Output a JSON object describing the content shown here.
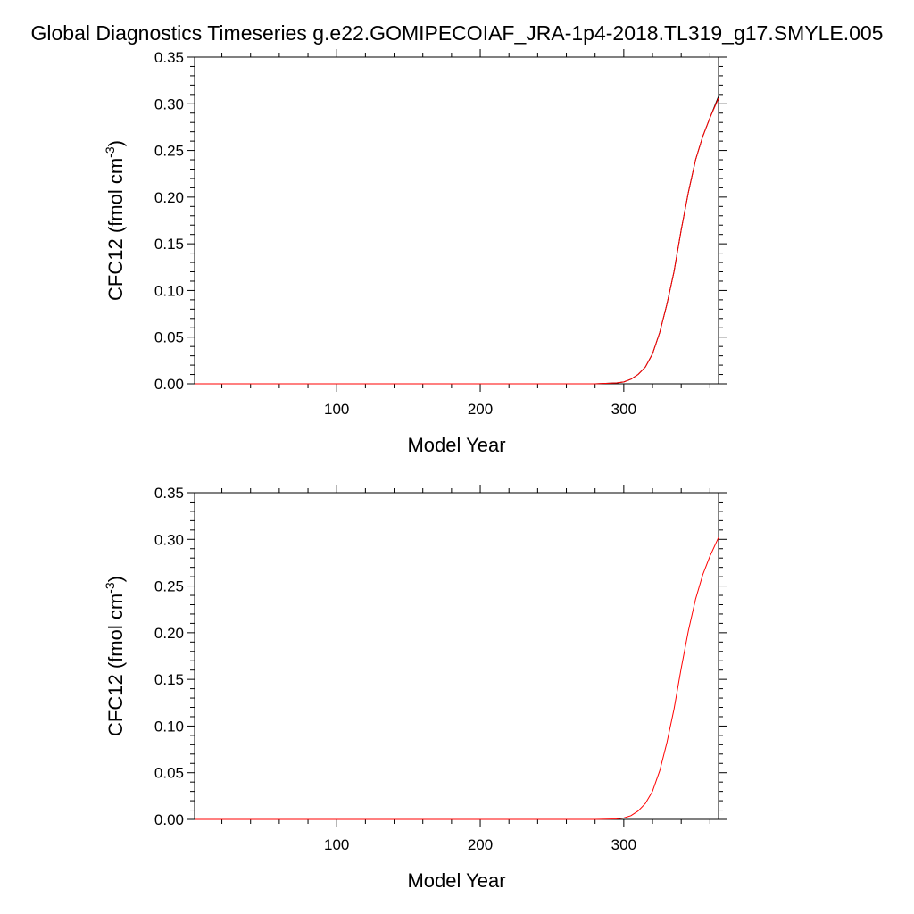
{
  "title": "Global Diagnostics Timeseries g.e22.GOMIPECOIAF_JRA-1p4-2018.TL319_g17.SMYLE.005",
  "chart_data": [
    {
      "type": "line",
      "xlabel": "Model Year",
      "ylabel": "CFC12 (fmol cm",
      "ylabel_superscript": "-3",
      "ylabel_close": ")",
      "xlim": [
        1,
        366
      ],
      "ylim": [
        0,
        0.35
      ],
      "x_ticks": [
        100,
        200,
        300
      ],
      "y_ticks": [
        "0.00",
        "0.05",
        "0.10",
        "0.15",
        "0.20",
        "0.25",
        "0.30",
        "0.35"
      ],
      "grid": false,
      "series": [
        {
          "color": "#000000",
          "x": [
            1,
            280,
            295,
            300,
            305,
            310,
            315,
            320,
            325,
            330,
            335,
            340,
            345,
            350,
            355,
            360,
            366
          ],
          "y": [
            0.0,
            0.0,
            0.001,
            0.002,
            0.005,
            0.01,
            0.018,
            0.032,
            0.055,
            0.085,
            0.12,
            0.165,
            0.205,
            0.24,
            0.265,
            0.285,
            0.308
          ]
        },
        {
          "color": "#ff0000",
          "x": [
            1,
            280,
            295,
            300,
            305,
            310,
            315,
            320,
            325,
            330,
            335,
            340,
            345,
            350,
            355,
            360,
            366
          ],
          "y": [
            0.0,
            0.0,
            0.001,
            0.002,
            0.005,
            0.01,
            0.018,
            0.032,
            0.055,
            0.085,
            0.12,
            0.165,
            0.205,
            0.24,
            0.265,
            0.285,
            0.306
          ]
        }
      ]
    },
    {
      "type": "line",
      "xlabel": "Model Year",
      "ylabel": "CFC12 (fmol cm",
      "ylabel_superscript": "-3",
      "ylabel_close": ")",
      "xlim": [
        1,
        366
      ],
      "ylim": [
        0,
        0.35
      ],
      "x_ticks": [
        100,
        200,
        300
      ],
      "y_ticks": [
        "0.00",
        "0.05",
        "0.10",
        "0.15",
        "0.20",
        "0.25",
        "0.30",
        "0.35"
      ],
      "grid": false,
      "series": [
        {
          "color": "#ff0000",
          "x": [
            1,
            280,
            295,
            300,
            305,
            310,
            315,
            320,
            325,
            330,
            335,
            340,
            345,
            350,
            355,
            360,
            366
          ],
          "y": [
            0.0,
            0.0,
            0.0005,
            0.0015,
            0.004,
            0.009,
            0.017,
            0.03,
            0.052,
            0.082,
            0.118,
            0.162,
            0.202,
            0.236,
            0.262,
            0.282,
            0.302
          ]
        }
      ]
    }
  ]
}
